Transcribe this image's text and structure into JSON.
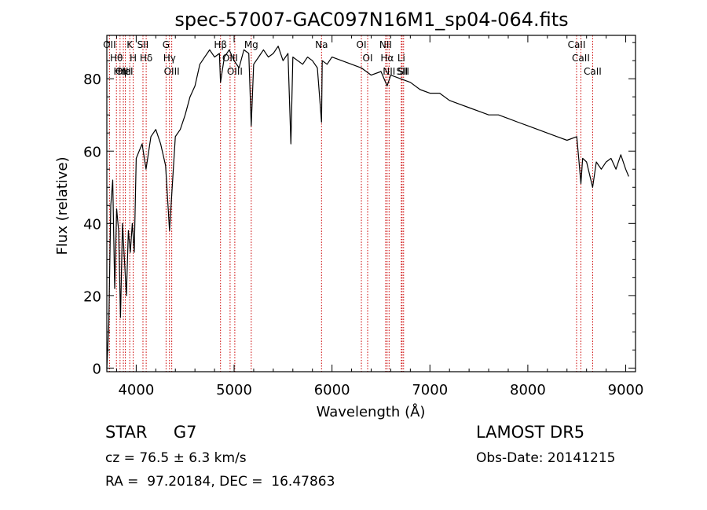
{
  "chart_data": {
    "type": "line",
    "title": "spec-57007-GAC097N16M1_sp04-064.fits",
    "xlabel": "Wavelength (Å)",
    "ylabel": "Flux (relative)",
    "xlim": [
      3700,
      9100
    ],
    "ylim": [
      -1,
      92
    ],
    "xticks": [
      4000,
      5000,
      6000,
      7000,
      8000,
      9000
    ],
    "yticks": [
      0,
      20,
      40,
      60,
      80
    ],
    "grid": false,
    "series": [
      {
        "x": [
          3700,
          3720,
          3740,
          3760,
          3780,
          3800,
          3820,
          3840,
          3860,
          3880,
          3900,
          3920,
          3940,
          3960,
          3980,
          4000,
          4030,
          4060,
          4100,
          4150,
          4200,
          4250,
          4300,
          4340,
          4400,
          4450,
          4500,
          4550,
          4600,
          4650,
          4700,
          4750,
          4800,
          4850,
          4861,
          4900,
          4950,
          5000,
          5050,
          5100,
          5150,
          5175,
          5200,
          5250,
          5300,
          5350,
          5400,
          5450,
          5500,
          5550,
          5580,
          5600,
          5650,
          5700,
          5750,
          5800,
          5850,
          5893,
          5900,
          5950,
          6000,
          6100,
          6200,
          6300,
          6400,
          6500,
          6563,
          6600,
          6700,
          6800,
          6900,
          7000,
          7100,
          7200,
          7300,
          7400,
          7500,
          7600,
          7700,
          7800,
          7900,
          8000,
          8100,
          8200,
          8300,
          8400,
          8500,
          8520,
          8542,
          8560,
          8600,
          8662,
          8700,
          8750,
          8800,
          8850,
          8900,
          8950,
          9000,
          9030
        ],
        "y": [
          0,
          12,
          45,
          52,
          22,
          44,
          38,
          14,
          40,
          30,
          20,
          38,
          32,
          40,
          32,
          58,
          60,
          62,
          55,
          64,
          66,
          62,
          56,
          38,
          64,
          66,
          70,
          75,
          78,
          84,
          86,
          88,
          86,
          87,
          79,
          86,
          88,
          85,
          83,
          88,
          87,
          67,
          84,
          86,
          88,
          86,
          87,
          89,
          85,
          87,
          62,
          86,
          85,
          84,
          86,
          85,
          83,
          68,
          85,
          84,
          86,
          85,
          84,
          83,
          81,
          82,
          78,
          81,
          80,
          79,
          77,
          76,
          76,
          74,
          73,
          72,
          71,
          70,
          70,
          69,
          68,
          67,
          66,
          65,
          64,
          63,
          64,
          58,
          51,
          58,
          57,
          50,
          57,
          55,
          57,
          58,
          55,
          59,
          55,
          53
        ]
      }
    ],
    "line_markers": [
      {
        "label": "Hθ",
        "x": 3798
      },
      {
        "label": "OII",
        "x": 3727
      },
      {
        "label": "OIII",
        "x": 3869
      },
      {
        "label": "K",
        "x": 3934
      },
      {
        "label": "HeI",
        "x": 3889
      },
      {
        "label": "Hη",
        "x": 3835
      },
      {
        "label": "H",
        "x": 3969
      },
      {
        "label": "SII",
        "x": 4069
      },
      {
        "label": "Hδ",
        "x": 4102
      },
      {
        "label": "OIII",
        "x": 4363
      },
      {
        "label": "Hγ",
        "x": 4340
      },
      {
        "label": "G",
        "x": 4305
      },
      {
        "label": "OIII",
        "x": 4959
      },
      {
        "label": "Hβ",
        "x": 4861
      },
      {
        "label": "OIII",
        "x": 5007
      },
      {
        "label": "Mg",
        "x": 5175
      },
      {
        "label": "Na",
        "x": 5893
      },
      {
        "label": "OI",
        "x": 6300
      },
      {
        "label": "OI",
        "x": 6364
      },
      {
        "label": "Hα",
        "x": 6563
      },
      {
        "label": "NII",
        "x": 6548
      },
      {
        "label": "NII",
        "x": 6583
      },
      {
        "label": "SII",
        "x": 6716
      },
      {
        "label": "Li",
        "x": 6708
      },
      {
        "label": "SII",
        "x": 6731
      },
      {
        "label": "CaII",
        "x": 8498
      },
      {
        "label": "CaII",
        "x": 8542
      },
      {
        "label": "CaII",
        "x": 8662
      }
    ]
  },
  "info": {
    "class_line": "STAR     G7",
    "cz_line": "cz = 76.5 ± 6.3 km/s",
    "coord_line": "RA =  97.20184, DEC =  16.47863",
    "survey": "LAMOST DR5",
    "obs_date": "Obs-Date: 20141215"
  },
  "colors": {
    "spectrum": "#000000",
    "marker_line": "#cc0000",
    "axis": "#000000",
    "background": "#ffffff"
  }
}
